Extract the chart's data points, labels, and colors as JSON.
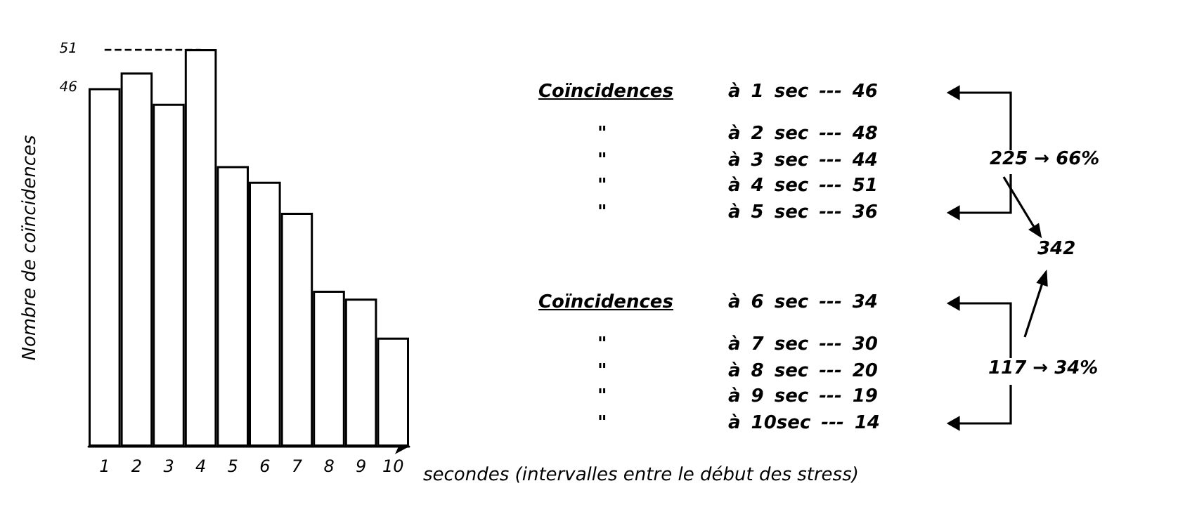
{
  "chart_data": {
    "type": "bar",
    "xlabel": "secondes (intervalles entre le début des stress)",
    "ylabel": "Nombre de coïncidences",
    "categories": [
      "1",
      "2",
      "3",
      "4",
      "5",
      "6",
      "7",
      "8",
      "9",
      "10"
    ],
    "values": [
      46,
      48,
      44,
      51,
      36,
      34,
      30,
      20,
      19,
      14
    ],
    "color": "#ffffff",
    "ylim": [
      0,
      51
    ],
    "yticks": [
      46,
      51
    ],
    "grid": false,
    "ref_lines": [
      {
        "axis": "y",
        "value": 51,
        "line_style": "dashed",
        "color": "#000000"
      }
    ],
    "annotations": [
      "Coïncidences",
      "\"",
      "\"",
      "\"",
      "\"",
      "Coïncidences",
      "\"",
      "\"",
      "\"",
      "\"",
      "à 1 sec --- 46",
      "à 2 sec --- 48",
      "à 3 sec --- 44",
      "à 4 sec --- 51",
      "à 5 sec --- 36",
      "à 6 sec --- 34",
      "à 7 sec --- 30",
      "à 8 sec --- 20",
      "à 9 sec --- 19",
      "à 10sec --- 14",
      "225 → 66%",
      "342",
      "117 → 34%"
    ]
  }
}
